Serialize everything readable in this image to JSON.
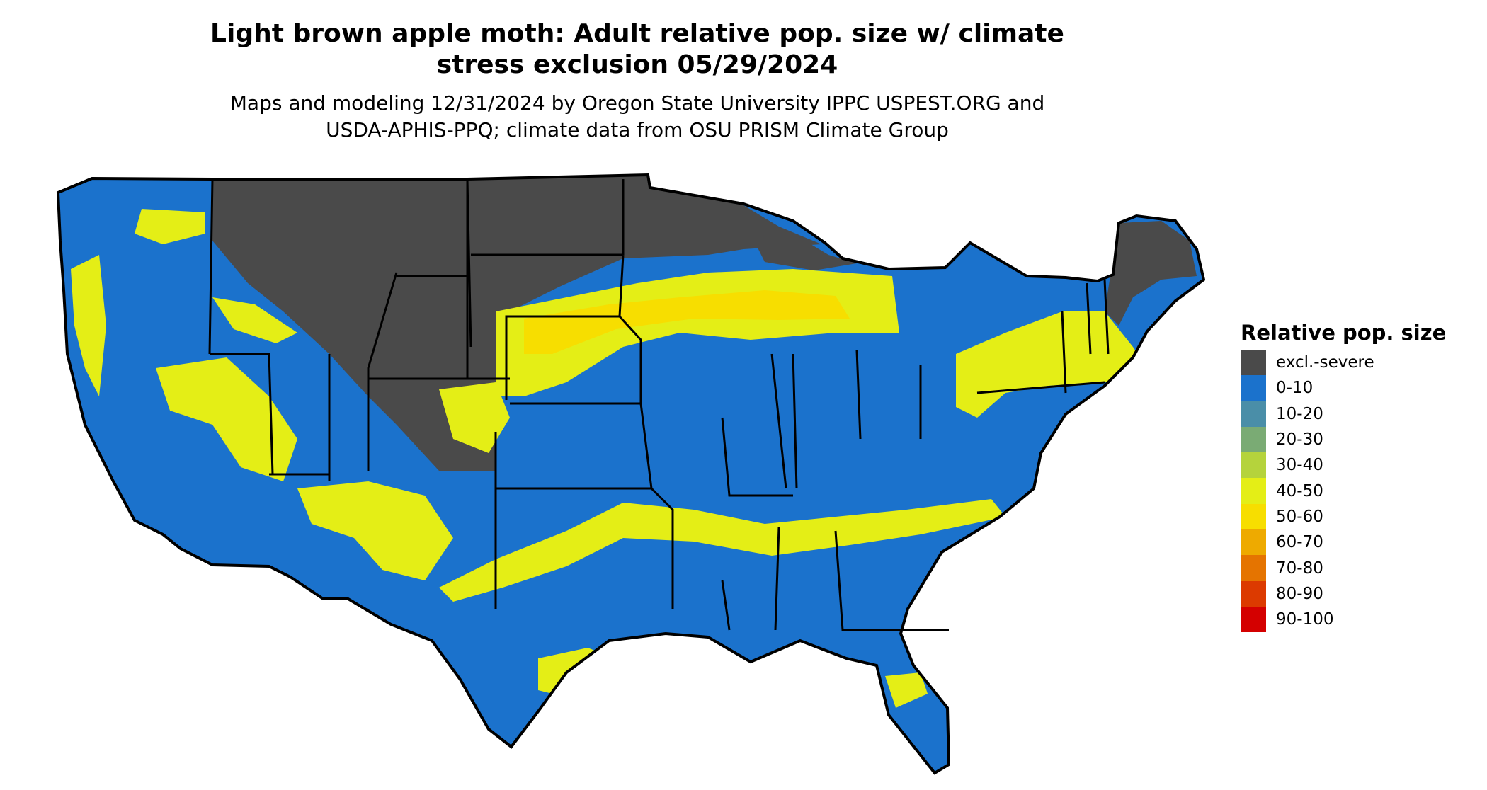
{
  "title_lines": [
    "Light brown apple moth: Adult relative pop. size w/ climate",
    "stress exclusion 05/29/2024"
  ],
  "subtitle_lines": [
    "Maps and modeling 12/31/2024 by Oregon State University IPPC USPEST.ORG and",
    "USDA-APHIS-PPQ; climate data from OSU PRISM Climate Group"
  ],
  "legend": {
    "title": "Relative pop. size",
    "items": [
      {
        "label": "excl.-severe",
        "color": "#4a4a4a"
      },
      {
        "label": "0-10",
        "color": "#1b72cc"
      },
      {
        "label": "10-20",
        "color": "#4a8ea8"
      },
      {
        "label": "20-30",
        "color": "#7aab74"
      },
      {
        "label": "30-40",
        "color": "#b5d33c"
      },
      {
        "label": "40-50",
        "color": "#e4ee16"
      },
      {
        "label": "50-60",
        "color": "#f7de00"
      },
      {
        "label": "60-70",
        "color": "#eeaa00"
      },
      {
        "label": "70-80",
        "color": "#e57400"
      },
      {
        "label": "80-90",
        "color": "#dc3a00"
      },
      {
        "label": "90-100",
        "color": "#d40000"
      }
    ]
  },
  "map": {
    "outline_color": "#000000",
    "land_color": "#1b72cc",
    "excluded_color": "#4a4a4a"
  }
}
